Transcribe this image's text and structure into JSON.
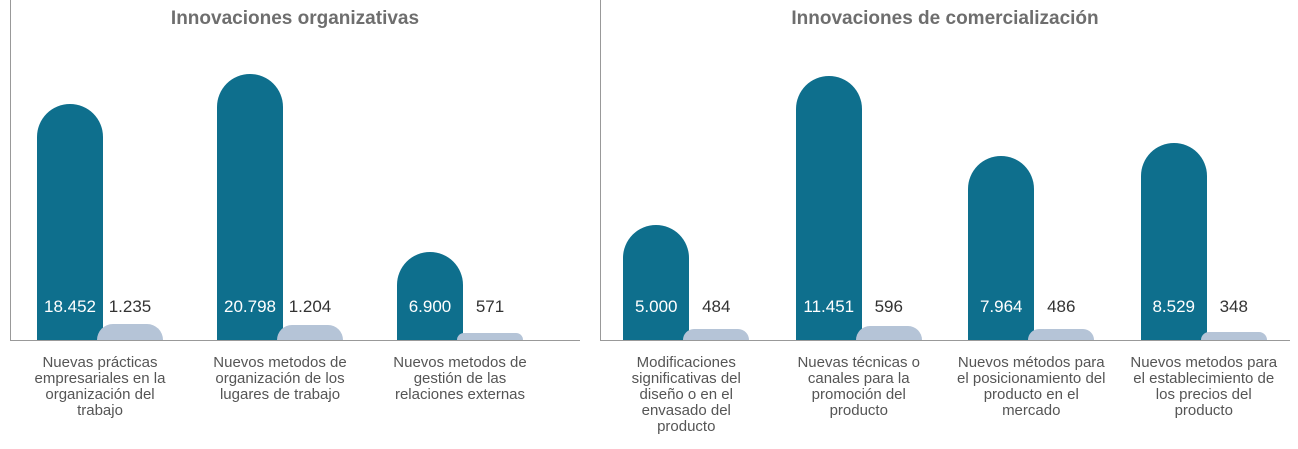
{
  "chart_data": [
    {
      "type": "bar",
      "title": "Innovaciones organizativas",
      "categories": [
        "Nuevas prácticas empresariales en la organización del trabajo",
        "Nuevos metodos de organización de los lugares de trabajo",
        "Nuevos metodos de gestión de las relaciones externas"
      ],
      "series": [
        {
          "color": "#0e6f8d",
          "values": [
            18452,
            20798,
            6900
          ],
          "value_labels": [
            "18.452",
            "20.798",
            "6.900"
          ]
        },
        {
          "color": "#b5c4d7",
          "values": [
            1235,
            1204,
            571
          ],
          "value_labels": [
            "1.235",
            "1.204",
            "571"
          ]
        }
      ],
      "ylim": [
        0,
        23500
      ]
    },
    {
      "type": "bar",
      "title": "Innovaciones de comercialización",
      "categories": [
        "Modificaciones significativas del diseño o en el envasado del producto",
        "Nuevas técnicas o canales para la promoción del producto",
        "Nuevos métodos para el posicionamiento del producto en el mercado",
        "Nuevos metodos para el establecimiento de los precios del producto"
      ],
      "series": [
        {
          "color": "#0e6f8d",
          "values": [
            5000,
            11451,
            7964,
            8529
          ],
          "value_labels": [
            "5.000",
            "11.451",
            "7.964",
            "8.529"
          ]
        },
        {
          "color": "#b5c4d7",
          "values": [
            484,
            596,
            486,
            348
          ],
          "value_labels": [
            "484",
            "596",
            "486",
            "348"
          ]
        }
      ],
      "ylim": [
        0,
        13000
      ]
    }
  ]
}
